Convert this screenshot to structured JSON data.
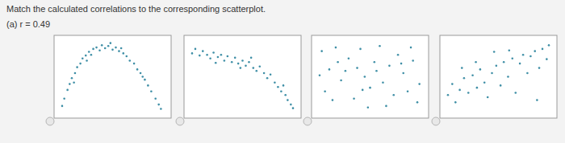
{
  "header": {
    "instruction": "Match the calculated correlations to the corresponding scatterplot.",
    "question": "(a) r = 0.49"
  },
  "chart_data": [
    {
      "type": "scatter",
      "color": "#3f8fa6",
      "marker": "circle",
      "tick_labels": false,
      "xlim": [
        0,
        10
      ],
      "ylim": [
        0,
        10
      ],
      "x": [
        0.3,
        0.5,
        0.8,
        1.0,
        1.2,
        1.5,
        1.7,
        2.0,
        2.2,
        2.5,
        2.8,
        3.0,
        3.2,
        3.5,
        3.8,
        4.0,
        4.3,
        4.6,
        5.0,
        5.3,
        5.6,
        6.0,
        6.3,
        6.6,
        7.0,
        7.3,
        7.6,
        8.0,
        8.3,
        8.6,
        9.0,
        9.3,
        9.5,
        2.6,
        4.8,
        5.8,
        1.4,
        7.8
      ],
      "values": [
        1.0,
        2.0,
        3.2,
        4.0,
        4.8,
        5.5,
        6.3,
        6.8,
        7.5,
        7.9,
        8.4,
        8.0,
        8.8,
        9.0,
        8.6,
        9.3,
        8.9,
        9.2,
        8.7,
        9.0,
        8.5,
        8.2,
        7.8,
        7.2,
        6.8,
        6.0,
        5.5,
        4.6,
        3.8,
        3.0,
        2.0,
        1.2,
        0.6,
        7.2,
        9.6,
        8.9,
        4.2,
        5.0
      ]
    },
    {
      "type": "scatter",
      "color": "#3f8fa6",
      "marker": "circle",
      "tick_labels": false,
      "xlim": [
        0,
        10
      ],
      "ylim": [
        0,
        10
      ],
      "x": [
        0.3,
        0.6,
        1.0,
        1.3,
        1.7,
        2.0,
        2.3,
        2.7,
        3.0,
        3.3,
        3.6,
        4.0,
        4.3,
        4.6,
        5.0,
        5.3,
        5.6,
        6.0,
        6.3,
        6.6,
        7.0,
        7.3,
        7.6,
        8.0,
        8.3,
        8.6,
        9.0,
        9.2,
        9.5,
        9.7,
        2.5,
        5.8,
        8.8,
        4.8
      ],
      "values": [
        8.2,
        8.8,
        7.9,
        8.5,
        8.0,
        7.5,
        8.3,
        7.7,
        8.0,
        7.2,
        7.8,
        7.0,
        7.6,
        6.8,
        7.2,
        6.5,
        7.0,
        6.2,
        5.8,
        6.4,
        5.5,
        4.8,
        5.3,
        4.2,
        3.6,
        3.0,
        2.5,
        1.8,
        1.2,
        0.7,
        6.9,
        7.6,
        3.8,
        6.2
      ]
    },
    {
      "type": "scatter",
      "color": "#3f8fa6",
      "marker": "circle",
      "tick_labels": false,
      "xlim": [
        0,
        10
      ],
      "ylim": [
        0,
        10
      ],
      "x": [
        0.5,
        1.2,
        1.8,
        2.3,
        0.8,
        3.0,
        3.5,
        2.7,
        4.1,
        4.5,
        5.0,
        5.4,
        5.9,
        6.2,
        6.8,
        7.2,
        7.6,
        8.1,
        8.5,
        9.0,
        9.4,
        3.8,
        1.5,
        6.5,
        4.8,
        8.8,
        2.0,
        5.6,
        7.9,
        9.6,
        0.3,
        4.3
      ],
      "values": [
        8.5,
        6.0,
        9.0,
        4.5,
        3.0,
        7.5,
        2.0,
        5.8,
        8.8,
        5.0,
        3.5,
        7.0,
        9.2,
        4.2,
        6.5,
        2.5,
        8.0,
        5.5,
        3.0,
        7.2,
        1.5,
        6.2,
        1.8,
        1.0,
        0.8,
        9.0,
        7.0,
        5.8,
        6.8,
        4.0,
        5.2,
        3.2
      ]
    },
    {
      "type": "scatter",
      "color": "#3f8fa6",
      "marker": "circle",
      "tick_labels": false,
      "xlim": [
        0,
        10
      ],
      "ylim": [
        0,
        10
      ],
      "x": [
        0.3,
        0.7,
        1.0,
        1.4,
        1.8,
        2.2,
        2.6,
        3.0,
        3.3,
        3.7,
        4.0,
        4.4,
        4.8,
        5.2,
        5.5,
        5.9,
        6.3,
        6.6,
        7.0,
        7.3,
        7.7,
        8.0,
        8.4,
        8.8,
        9.1,
        9.5,
        6.0,
        2.9,
        8.6,
        1.6,
        4.6,
        9.7
      ],
      "values": [
        2.5,
        4.0,
        1.5,
        3.2,
        4.8,
        2.8,
        5.2,
        3.5,
        6.0,
        4.2,
        2.2,
        5.5,
        6.5,
        3.8,
        7.0,
        5.0,
        7.5,
        2.8,
        6.8,
        8.0,
        5.5,
        7.8,
        8.5,
        6.2,
        8.8,
        7.4,
        8.6,
        7.0,
        1.8,
        6.2,
        8.4,
        9.3
      ]
    }
  ]
}
